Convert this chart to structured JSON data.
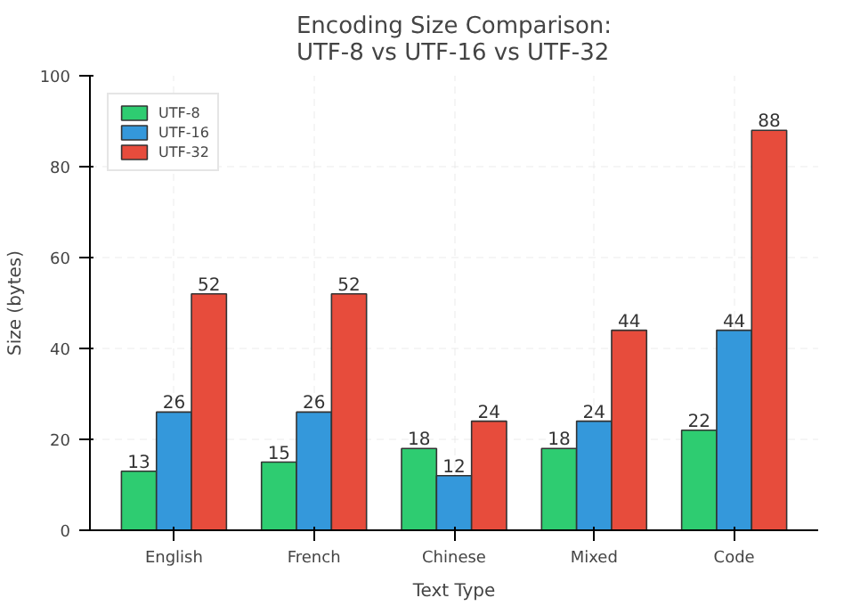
{
  "chart_data": {
    "type": "bar",
    "title": "Encoding Size Comparison:\nUTF-8 vs UTF-16 vs UTF-32",
    "xlabel": "Text Type",
    "ylabel": "Size (bytes)",
    "categories": [
      "English",
      "French",
      "Chinese",
      "Mixed",
      "Code"
    ],
    "series": [
      {
        "name": "UTF-8",
        "color": "#2ecc71",
        "values": [
          13,
          15,
          18,
          18,
          22
        ]
      },
      {
        "name": "UTF-16",
        "color": "#3498db",
        "values": [
          26,
          26,
          12,
          24,
          44
        ]
      },
      {
        "name": "UTF-32",
        "color": "#e74c3c",
        "values": [
          52,
          52,
          24,
          44,
          88
        ]
      }
    ],
    "ylim": [
      0,
      100
    ],
    "yticks": [
      0,
      20,
      40,
      60,
      80,
      100
    ],
    "grid": true,
    "legend": "top left",
    "data_labels": true
  }
}
